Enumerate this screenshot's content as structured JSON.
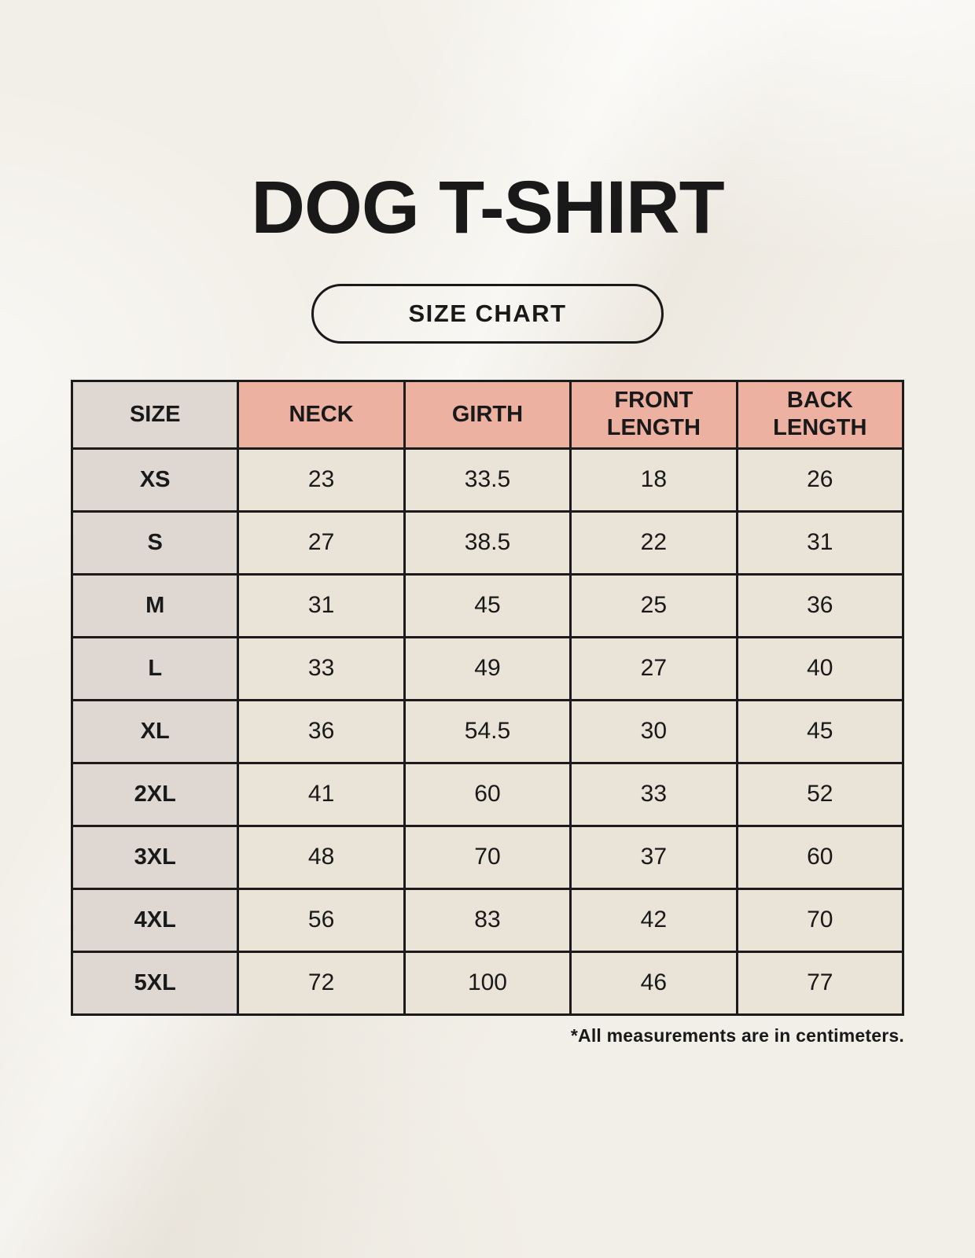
{
  "page": {
    "background_color": "#f2efe8",
    "text_color": "#191919"
  },
  "chart_data": {
    "type": "table",
    "title": "DOG T-SHIRT",
    "subtitle": "SIZE CHART",
    "columns": [
      "SIZE",
      "NECK",
      "GIRTH",
      "FRONT LENGTH",
      "BACK LENGTH"
    ],
    "rows": [
      [
        "XS",
        "23",
        "33.5",
        "18",
        "26"
      ],
      [
        "S",
        "27",
        "38.5",
        "22",
        "31"
      ],
      [
        "M",
        "31",
        "45",
        "25",
        "36"
      ],
      [
        "L",
        "33",
        "49",
        "27",
        "40"
      ],
      [
        "XL",
        "36",
        "54.5",
        "30",
        "45"
      ],
      [
        "2XL",
        "41",
        "60",
        "33",
        "52"
      ],
      [
        "3XL",
        "48",
        "70",
        "37",
        "60"
      ],
      [
        "4XL",
        "56",
        "83",
        "42",
        "70"
      ],
      [
        "5XL",
        "72",
        "100",
        "46",
        "77"
      ]
    ],
    "note": "*All measurements are in centimeters.",
    "units": "centimeters",
    "layout": {
      "grid": "on",
      "header_row": true,
      "label_column": true
    },
    "colors": {
      "header_fill": "#edb1a1",
      "size_column_fill": "#ded7d2",
      "cell_fill": "#eae3d8",
      "grid_border": "#1b1b1b"
    }
  }
}
